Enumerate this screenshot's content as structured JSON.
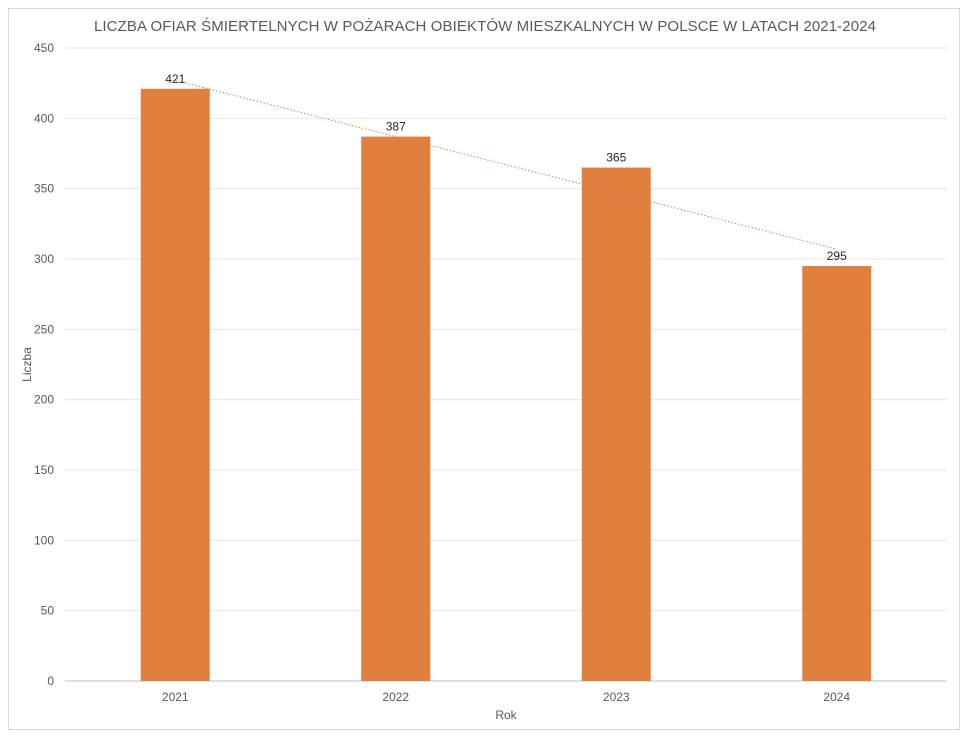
{
  "chart_data": {
    "type": "bar",
    "title": "LICZBA OFIAR ŚMIERTELNYCH W POŻARACH OBIEKTÓW MIESZKALNYCH W POLSCE W LATACH 2021-2024",
    "xlabel": "Rok",
    "ylabel": "Liczba",
    "categories": [
      "2021",
      "2022",
      "2023",
      "2024"
    ],
    "values": [
      421,
      387,
      365,
      295
    ],
    "ylim": [
      0,
      450
    ],
    "yticks": [
      0,
      50,
      100,
      150,
      200,
      250,
      300,
      350,
      400,
      450
    ],
    "grid": true,
    "legend": "none",
    "trendline": "linear, dotted",
    "colors": {
      "bar": "#e07f3e",
      "trendline": "#c98a4f",
      "grid": "#e4e4e4",
      "axis": "#bfbfbf"
    }
  }
}
